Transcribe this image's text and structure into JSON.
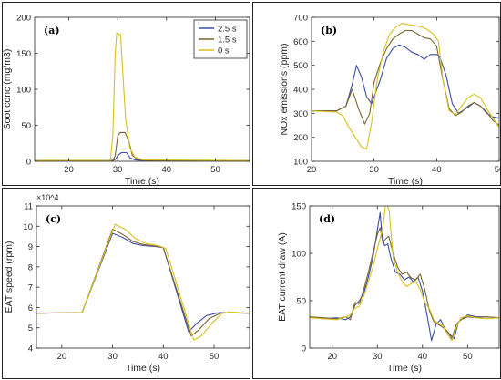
{
  "chart_data": [
    {
      "type": "line",
      "panel_label": "(a)",
      "ylabel": "Soot conc (mg/m3)",
      "xlabel": "Time (s)",
      "xlim": [
        13,
        57
      ],
      "ylim": [
        0,
        200
      ],
      "xticks": [
        20,
        30,
        40,
        50
      ],
      "yticks": [
        0,
        50,
        100,
        150,
        200
      ],
      "grid": false,
      "legend": {
        "position": "top-right",
        "entries": [
          "2.5 s",
          "1.5 s",
          "0 s"
        ]
      },
      "series": [
        {
          "name": "2.5 s",
          "color": "#3b4fa0",
          "x": [
            13,
            29,
            29.6,
            30,
            30.8,
            31.8,
            32.5,
            33.5,
            35,
            57
          ],
          "y": [
            1,
            1,
            3,
            8,
            12,
            12,
            5,
            2,
            1,
            1
          ]
        },
        {
          "name": "1.5 s",
          "color": "#7a6530",
          "x": [
            13,
            29,
            29.5,
            30,
            30.5,
            31.5,
            32.3,
            33,
            34,
            36,
            57
          ],
          "y": [
            1,
            1,
            8,
            35,
            40,
            40,
            28,
            8,
            3,
            1,
            1
          ]
        },
        {
          "name": "0 s",
          "color": "#d8c01e",
          "x": [
            13,
            28.5,
            29,
            29.5,
            29.8,
            30.6,
            31,
            31.6,
            32.5,
            33.5,
            35,
            57
          ],
          "y": [
            1,
            1,
            35,
            150,
            178,
            176,
            130,
            60,
            18,
            6,
            2,
            1
          ]
        }
      ]
    },
    {
      "type": "line",
      "panel_label": "(b)",
      "ylabel": "NOx emissions (ppm)",
      "xlabel": "Time (s)",
      "xlim": [
        20,
        50
      ],
      "ylim": [
        100,
        700
      ],
      "xticks": [
        20,
        30,
        40,
        50
      ],
      "yticks": [
        100,
        200,
        300,
        400,
        500,
        600,
        700
      ],
      "grid": false,
      "series": [
        {
          "name": "2.5 s",
          "color": "#3b4fa0",
          "x": [
            20,
            24,
            25.5,
            26.5,
            27.2,
            28,
            28.8,
            29.6,
            31,
            32,
            33,
            34,
            35,
            36,
            37,
            38,
            39,
            40,
            40.5,
            41.5,
            42.5,
            43.5,
            45,
            46,
            47,
            48,
            49,
            50
          ],
          "y": [
            310,
            310,
            330,
            420,
            500,
            450,
            370,
            340,
            440,
            530,
            570,
            585,
            575,
            555,
            545,
            525,
            545,
            545,
            535,
            460,
            340,
            300,
            325,
            345,
            330,
            300,
            285,
            280
          ]
        },
        {
          "name": "1.5 s",
          "color": "#7a6530",
          "x": [
            20,
            24,
            25.5,
            26.5,
            27.5,
            28.5,
            29.3,
            30,
            31,
            32,
            33,
            34,
            35,
            36,
            37,
            38,
            39,
            40,
            41,
            42,
            43,
            44,
            45,
            46,
            47,
            48,
            49,
            50
          ],
          "y": [
            310,
            310,
            330,
            400,
            320,
            255,
            300,
            430,
            510,
            570,
            610,
            630,
            645,
            645,
            630,
            615,
            610,
            580,
            440,
            320,
            290,
            305,
            330,
            345,
            330,
            305,
            270,
            250
          ]
        },
        {
          "name": "0 s",
          "color": "#d8c01e",
          "x": [
            20,
            24,
            25,
            26,
            27,
            28,
            28.8,
            29.6,
            30.5,
            31.5,
            32.5,
            33.5,
            34.5,
            35.5,
            36.5,
            37.5,
            38.5,
            39.5,
            40.3,
            41,
            42,
            43,
            44,
            45,
            46,
            47,
            48,
            49,
            50
          ],
          "y": [
            310,
            305,
            290,
            240,
            200,
            160,
            150,
            260,
            440,
            560,
            630,
            660,
            675,
            670,
            665,
            660,
            650,
            630,
            600,
            440,
            310,
            295,
            330,
            365,
            380,
            365,
            320,
            280,
            240
          ]
        }
      ]
    },
    {
      "type": "line",
      "panel_label": "(c)",
      "ylabel": "EAT speed (rpm)",
      "xlabel": "Time (s)",
      "exponent_label": "×10^4",
      "xlim": [
        15,
        57
      ],
      "ylim": [
        4,
        11
      ],
      "xticks": [
        20,
        30,
        40,
        50
      ],
      "yticks": [
        4,
        5,
        6,
        7,
        8,
        9,
        10,
        11
      ],
      "grid": false,
      "series": [
        {
          "name": "2.5 s",
          "color": "#3b4fa0",
          "x": [
            15,
            24,
            30,
            32,
            34,
            36,
            38.5,
            40,
            45,
            46.5,
            48.5,
            51,
            57
          ],
          "y": [
            5.72,
            5.75,
            9.65,
            9.45,
            9.15,
            9.05,
            9.0,
            8.95,
            4.8,
            5.2,
            5.6,
            5.75,
            5.72
          ]
        },
        {
          "name": "1.5 s",
          "color": "#7a6530",
          "x": [
            15,
            24,
            30,
            32,
            34,
            36,
            38.5,
            40,
            45.5,
            47,
            49,
            51.5,
            57
          ],
          "y": [
            5.72,
            5.75,
            9.85,
            9.6,
            9.25,
            9.1,
            9.02,
            8.95,
            4.6,
            4.9,
            5.45,
            5.75,
            5.72
          ]
        },
        {
          "name": "0 s",
          "color": "#d8c01e",
          "x": [
            15,
            24,
            30.5,
            32.5,
            34.5,
            36.5,
            39,
            40.5,
            46,
            47.5,
            49.5,
            51.5,
            53,
            57
          ],
          "y": [
            5.72,
            5.75,
            10.1,
            9.85,
            9.4,
            9.15,
            9.05,
            8.9,
            4.4,
            4.6,
            5.2,
            5.7,
            5.78,
            5.72
          ]
        }
      ]
    },
    {
      "type": "line",
      "panel_label": "(d)",
      "ylabel": "EAT current draw (A)",
      "xlabel": "Time (s)",
      "xlim": [
        15,
        57
      ],
      "ylim": [
        0,
        150
      ],
      "xticks": [
        20,
        30,
        40,
        50
      ],
      "yticks": [
        0,
        50,
        100,
        150
      ],
      "grid": false,
      "series": [
        {
          "name": "2.5 s",
          "color": "#3b4fa0",
          "x": [
            15,
            18,
            21,
            23,
            24,
            25,
            26,
            27,
            28,
            29,
            30,
            30.6,
            31,
            31.6,
            32.3,
            33,
            34,
            35,
            36,
            37,
            38,
            39,
            40,
            41,
            42,
            43,
            44,
            45,
            46,
            47,
            48,
            50,
            52,
            54,
            57
          ],
          "y": [
            33,
            31,
            32,
            30,
            33,
            45,
            50,
            58,
            75,
            95,
            125,
            143,
            120,
            108,
            110,
            95,
            80,
            78,
            72,
            75,
            70,
            75,
            60,
            35,
            8,
            25,
            30,
            20,
            15,
            10,
            28,
            35,
            33,
            33,
            32
          ]
        },
        {
          "name": "1.5 s",
          "color": "#7a6530",
          "x": [
            15,
            18,
            21,
            23,
            24,
            25,
            26,
            27,
            28,
            29,
            30,
            30.6,
            31.2,
            31.8,
            32.5,
            33.5,
            34.5,
            35.5,
            36.5,
            37.5,
            38.5,
            39.5,
            40.5,
            41.5,
            42.5,
            43.5,
            44.5,
            45.5,
            46.5,
            47.5,
            48.5,
            50,
            52,
            54,
            57
          ],
          "y": [
            33,
            32,
            31,
            33,
            30,
            48,
            47,
            62,
            80,
            100,
            120,
            127,
            112,
            115,
            118,
            100,
            85,
            78,
            80,
            74,
            72,
            78,
            62,
            40,
            28,
            25,
            22,
            18,
            10,
            25,
            30,
            33,
            32,
            33,
            32
          ]
        },
        {
          "name": "0 s",
          "color": "#d8c01e",
          "x": [
            15,
            18,
            21,
            23,
            24,
            25,
            26,
            27,
            28,
            29,
            30,
            30.7,
            31.3,
            31.9,
            32.6,
            33.5,
            34.5,
            35.5,
            36.5,
            37.5,
            38.5,
            39.5,
            40.5,
            41.5,
            42.5,
            43.5,
            44.5,
            45.5,
            46.5,
            47.5,
            48.5,
            50,
            52,
            54,
            57
          ],
          "y": [
            32,
            31,
            30,
            33,
            35,
            42,
            44,
            55,
            70,
            85,
            105,
            118,
            130,
            155,
            145,
            95,
            80,
            70,
            65,
            68,
            70,
            62,
            48,
            42,
            30,
            26,
            24,
            15,
            8,
            22,
            32,
            34,
            32,
            31,
            32
          ]
        }
      ]
    }
  ]
}
